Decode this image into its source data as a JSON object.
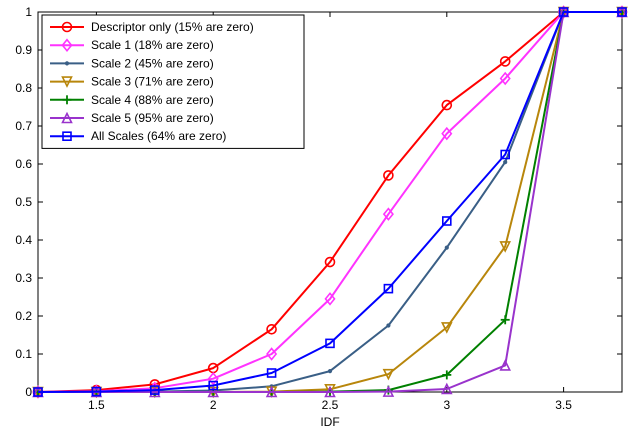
{
  "chart_data": {
    "type": "line",
    "title": "",
    "xlabel": "IDF",
    "ylabel": "",
    "xlim": [
      1.25,
      3.75
    ],
    "ylim": [
      0,
      1
    ],
    "xticks": [
      "1.5",
      "2",
      "2.5",
      "3",
      "3.5"
    ],
    "xtick_values": [
      1.5,
      2,
      2.5,
      3,
      3.5
    ],
    "yticks": [
      "0",
      "0.1",
      "0.2",
      "0.3",
      "0.4",
      "0.5",
      "0.6",
      "0.7",
      "0.8",
      "0.9",
      "1"
    ],
    "ytick_values": [
      0,
      0.1,
      0.2,
      0.3,
      0.4,
      0.5,
      0.6,
      0.7,
      0.8,
      0.9,
      1
    ],
    "grid": false,
    "legend_position": "top-left",
    "x": [
      1.25,
      1.5,
      1.75,
      2,
      2.25,
      2.5,
      2.75,
      3,
      3.25,
      3.5,
      3.75
    ],
    "series": [
      {
        "name": "Descriptor only (15% are zero)",
        "color": "#ff0000",
        "marker": "circle",
        "values": [
          0,
          0.005,
          0.02,
          0.063,
          0.165,
          0.342,
          0.57,
          0.755,
          0.87,
          1,
          1
        ]
      },
      {
        "name": "Scale 1 (18% are zero)",
        "color": "#ff33ff",
        "marker": "diamond",
        "values": [
          0,
          0.002,
          0.01,
          0.035,
          0.1,
          0.245,
          0.468,
          0.68,
          0.825,
          1,
          1
        ]
      },
      {
        "name": "Scale 2 (45% are zero)",
        "color": "#3a5f86",
        "marker": "point",
        "values": [
          0,
          0,
          0.001,
          0.004,
          0.015,
          0.055,
          0.175,
          0.38,
          0.605,
          1,
          1
        ]
      },
      {
        "name": "Scale 3 (71% are zero)",
        "color": "#b8860b",
        "marker": "triangle-down",
        "values": [
          0,
          0,
          0,
          0,
          0.001,
          0.007,
          0.047,
          0.17,
          0.383,
          1,
          1
        ]
      },
      {
        "name": "Scale 4 (88% are zero)",
        "color": "#008000",
        "marker": "plus",
        "values": [
          0,
          0,
          0,
          0,
          0,
          0.001,
          0.005,
          0.045,
          0.19,
          1,
          1
        ]
      },
      {
        "name": "Scale 5 (95% are zero)",
        "color": "#9933cc",
        "marker": "triangle-up",
        "values": [
          0,
          0,
          0,
          0,
          0,
          0,
          0.001,
          0.008,
          0.07,
          1,
          1
        ]
      },
      {
        "name": "All Scales (64% are zero)",
        "color": "#0000ff",
        "marker": "square",
        "values": [
          0,
          0.001,
          0.005,
          0.017,
          0.05,
          0.128,
          0.272,
          0.45,
          0.625,
          1,
          1
        ]
      }
    ]
  }
}
